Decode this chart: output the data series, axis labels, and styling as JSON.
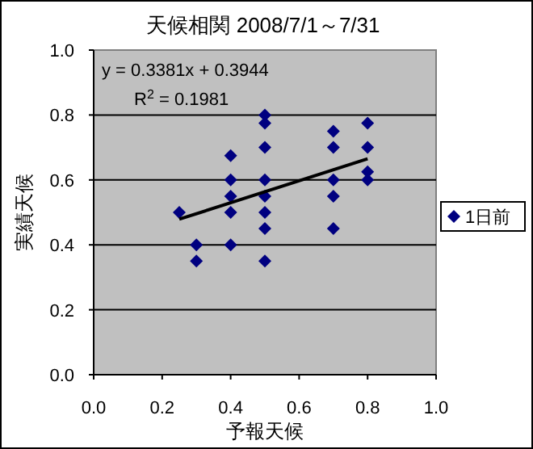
{
  "chart_data": {
    "type": "scatter",
    "title": "天候相関  2008/7/1～7/31",
    "xlabel": "予報天候",
    "ylabel": "実績天候",
    "xlim": [
      0,
      1
    ],
    "ylim": [
      0,
      1
    ],
    "xticks": [
      {
        "value": 0,
        "label": "0.0"
      },
      {
        "value": 0.2,
        "label": "0.2"
      },
      {
        "value": 0.4,
        "label": "0.4"
      },
      {
        "value": 0.6,
        "label": "0.6"
      },
      {
        "value": 0.8,
        "label": "0.8"
      },
      {
        "value": 1,
        "label": "1.0"
      }
    ],
    "yticks": [
      {
        "value": 0,
        "label": "0.0"
      },
      {
        "value": 0.2,
        "label": "0.2"
      },
      {
        "value": 0.4,
        "label": "0.4"
      },
      {
        "value": 0.6,
        "label": "0.6"
      },
      {
        "value": 0.8,
        "label": "0.8"
      },
      {
        "value": 1,
        "label": "1.0"
      }
    ],
    "grid": "y",
    "legend": "right",
    "annotations": [
      "y = 0.3381x + 0.3944",
      "R$^{2}$ = 0.1981"
    ],
    "series": [
      {
        "name": "1日前",
        "marker": "diamond",
        "color": "#000080",
        "x": [
          0.25,
          0.3,
          0.3,
          0.4,
          0.4,
          0.4,
          0.4,
          0.4,
          0.5,
          0.5,
          0.5,
          0.5,
          0.5,
          0.5,
          0.5,
          0.5,
          0.7,
          0.7,
          0.7,
          0.7,
          0.7,
          0.8,
          0.8,
          0.8,
          0.8
        ],
        "values": [
          0.5,
          0.4,
          0.35,
          0.675,
          0.6,
          0.55,
          0.5,
          0.4,
          0.8,
          0.775,
          0.7,
          0.6,
          0.55,
          0.5,
          0.45,
          0.35,
          0.75,
          0.7,
          0.6,
          0.55,
          0.45,
          0.775,
          0.7,
          0.625,
          0.6
        ]
      },
      {
        "type": "line",
        "marker": "none",
        "color": "#000000",
        "x": [
          0.25,
          0.8
        ],
        "values": [
          0.479,
          0.665
        ]
      }
    ]
  }
}
